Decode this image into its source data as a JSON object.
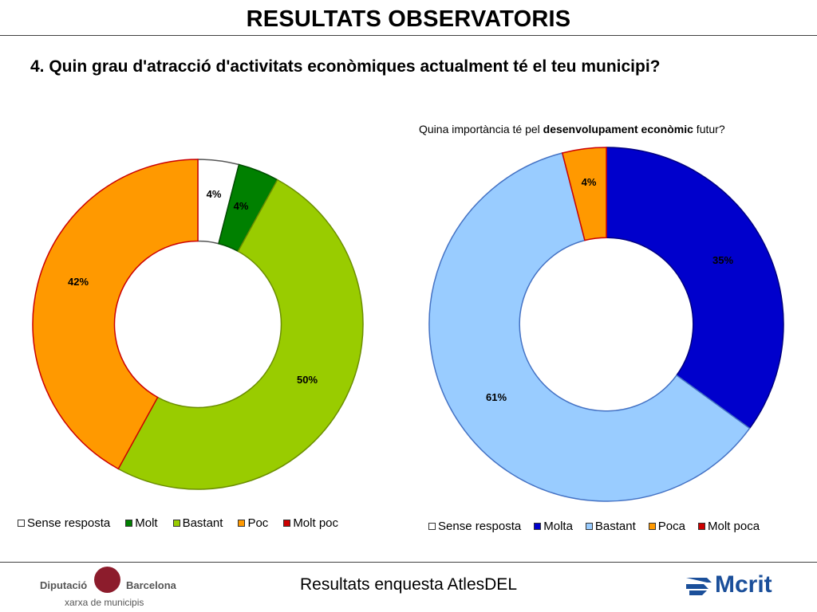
{
  "header": {
    "title": "RESULTATS OBSERVATORIS",
    "question": "4. Quin grau d'atracció d'activitats econòmiques actualment té el teu municipi?"
  },
  "right_chart_title": {
    "prefix": "Quina importància té pel ",
    "bold": "desenvolupament econòmic",
    "suffix": " futur?"
  },
  "chart_data": [
    {
      "type": "pie",
      "variant": "donut",
      "title": "",
      "categories": [
        "Sense resposta",
        "Molt",
        "Bastant",
        "Poc",
        "Molt poc"
      ],
      "values": [
        4,
        4,
        50,
        42,
        0
      ],
      "labels": [
        "4%",
        "4%",
        "50%",
        "42%",
        ""
      ],
      "colors": [
        "#ffffff",
        "#008000",
        "#99cc00",
        "#ff9900",
        "#cc0000"
      ],
      "legend": "bottom"
    },
    {
      "type": "pie",
      "variant": "donut",
      "title": "Quina importància té pel desenvolupament econòmic futur?",
      "categories": [
        "Sense resposta",
        "Molta",
        "Bastant",
        "Poca",
        "Molt poca"
      ],
      "values": [
        0,
        35,
        61,
        4,
        0
      ],
      "labels": [
        "",
        "35%",
        "61%",
        "4%",
        ""
      ],
      "colors": [
        "#ffffff",
        "#0000cc",
        "#99ccff",
        "#ff9900",
        "#cc0000"
      ],
      "legend": "bottom"
    }
  ],
  "footer": {
    "text": "Resultats enquesta AtlesDEL",
    "logo_left_name_1": "Diputació",
    "logo_left_name_2": "Barcelona",
    "logo_left_sub": "xarxa de municipis",
    "logo_right": "Mcrit"
  }
}
